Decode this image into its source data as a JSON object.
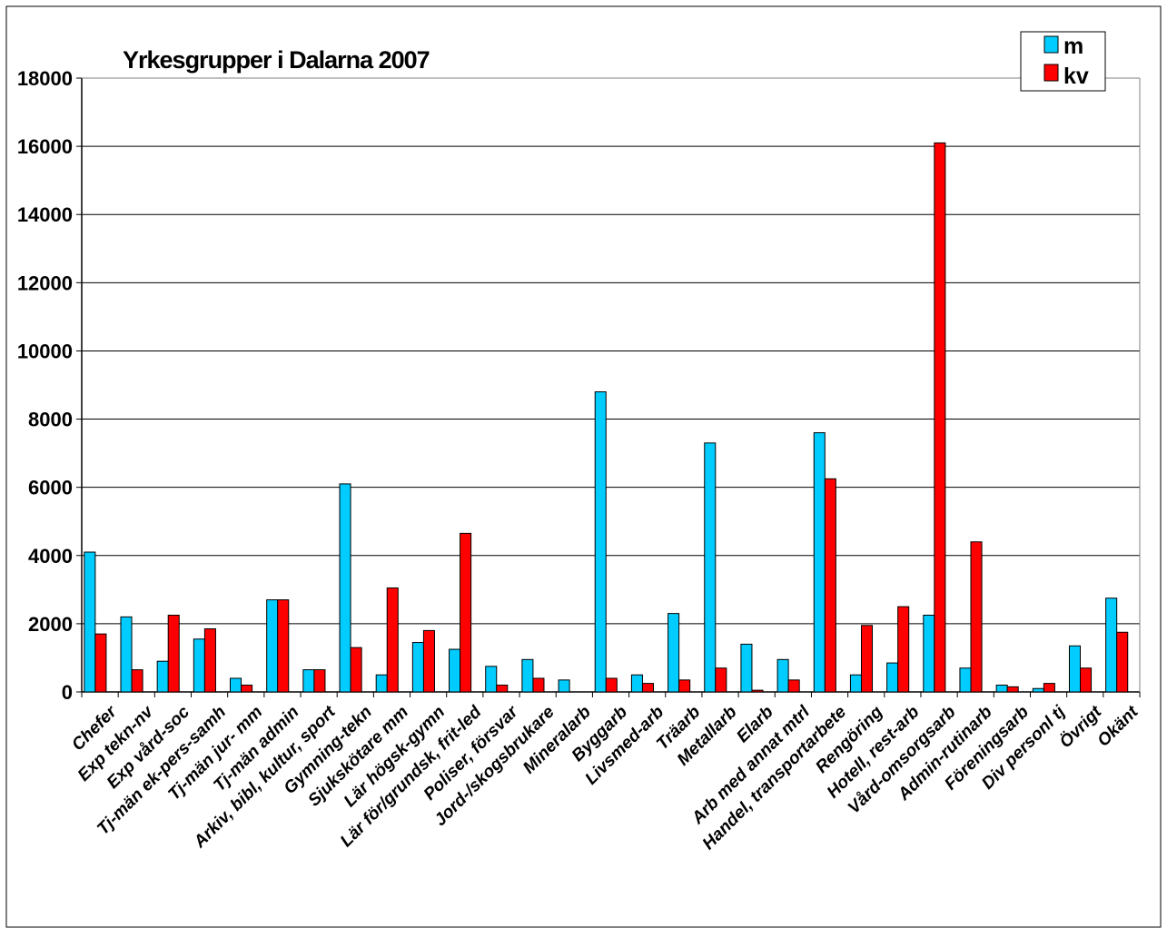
{
  "chart_data": {
    "type": "bar",
    "title": "Yrkesgrupper i Dalarna  2007",
    "xlabel": "",
    "ylabel": "",
    "ylim": [
      0,
      18000
    ],
    "yticks": [
      0,
      2000,
      4000,
      6000,
      8000,
      10000,
      12000,
      14000,
      16000,
      18000
    ],
    "grid": true,
    "legend_position": "top-right",
    "categories": [
      "Chefer",
      "Exp tekn-nv",
      "Exp vård-soc",
      "Tj-män ek-pers-samh",
      "Tj-män jur- mm",
      "Tj-män admin",
      "Arkiv, bibl, kultur, sport",
      "Gymning-tekn",
      "Sjukskötare mm",
      "Lär högsk-gymn",
      "Lär för/grundsk, frit-led",
      "Poliser, försvar",
      "Jord-/skogsbrukare",
      "Mineralarb",
      "Byggarb",
      "Livsmed-arb",
      "Träarb",
      "Metallarb",
      "Elarb",
      "Arb med annat mtrl",
      "Handel, transportarbete",
      "Rengöring",
      "Hotell, rest-arb",
      "Vård-omsorgsarb",
      "Admin-rutinarb",
      "Föreningsarb",
      "Div personl tj",
      "Övrigt",
      "Okänt"
    ],
    "series": [
      {
        "name": "m",
        "color": "#00ccff",
        "values": [
          4100,
          2200,
          900,
          1550,
          400,
          2700,
          650,
          6100,
          500,
          1450,
          1250,
          750,
          950,
          350,
          8800,
          500,
          2300,
          7300,
          1400,
          950,
          7600,
          500,
          850,
          2250,
          700,
          200,
          100,
          1350,
          2750
        ]
      },
      {
        "name": "kv",
        "color": "#ff0000",
        "values": [
          1700,
          650,
          2250,
          1850,
          200,
          2700,
          650,
          1300,
          3050,
          1800,
          4650,
          200,
          400,
          0,
          400,
          250,
          350,
          700,
          50,
          350,
          6250,
          1950,
          2500,
          16100,
          4400,
          150,
          250,
          700,
          1750
        ]
      }
    ]
  }
}
